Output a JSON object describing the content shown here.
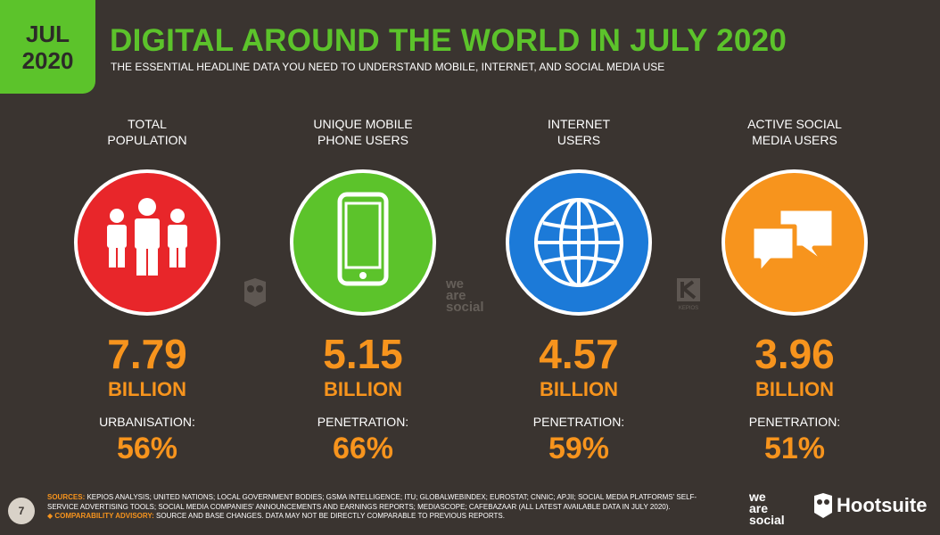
{
  "badge": {
    "month": "JUL",
    "year": "2020"
  },
  "header": {
    "title": "DIGITAL AROUND THE WORLD IN JULY 2020",
    "subtitle": "THE ESSENTIAL HEADLINE DATA YOU NEED TO UNDERSTAND MOBILE, INTERNET, AND SOCIAL MEDIA USE"
  },
  "stats": [
    {
      "label_line1": "TOTAL",
      "label_line2": "POPULATION",
      "value": "7.79",
      "unit": "BILLION",
      "sub_label": "URBANISATION:",
      "sub_value": "56%",
      "icon": "people-icon",
      "color": "#e8262a"
    },
    {
      "label_line1": "UNIQUE MOBILE",
      "label_line2": "PHONE USERS",
      "value": "5.15",
      "unit": "BILLION",
      "sub_label": "PENETRATION:",
      "sub_value": "66%",
      "icon": "mobile-phone-icon",
      "color": "#5cc32b"
    },
    {
      "label_line1": "INTERNET",
      "label_line2": "USERS",
      "value": "4.57",
      "unit": "BILLION",
      "sub_label": "PENETRATION:",
      "sub_value": "59%",
      "icon": "globe-icon",
      "color": "#1c7ad8"
    },
    {
      "label_line1": "ACTIVE SOCIAL",
      "label_line2": "MEDIA USERS",
      "value": "3.96",
      "unit": "BILLION",
      "sub_label": "PENETRATION:",
      "sub_value": "51%",
      "icon": "chat-bubbles-icon",
      "color": "#f7941d"
    }
  ],
  "watermarks": {
    "we_are_social": [
      "we",
      "are",
      "social"
    ],
    "kepios": "KEPIOS"
  },
  "footer": {
    "page_number": "7",
    "sources_key": "SOURCES:",
    "sources_text": "KEPIOS ANALYSIS; UNITED NATIONS; LOCAL GOVERNMENT BODIES; GSMA INTELLIGENCE; ITU; GLOBALWEBINDEX; EUROSTAT; CNNIC; APJII; SOCIAL MEDIA PLATFORMS' SELF-SERVICE ADVERTISING TOOLS; SOCIAL MEDIA COMPANIES' ANNOUNCEMENTS AND EARNINGS REPORTS; MEDIASCOPE; CAFEBAZAAR (ALL LATEST AVAILABLE DATA IN JULY 2020).",
    "advisory_key": "◆ COMPARABILITY ADVISORY:",
    "advisory_text": "SOURCE AND BASE CHANGES. DATA MAY NOT BE DIRECTLY COMPARABLE TO PREVIOUS REPORTS.",
    "logo_we_are_social": [
      "we",
      "are",
      "social"
    ],
    "logo_hootsuite": "Hootsuite"
  }
}
